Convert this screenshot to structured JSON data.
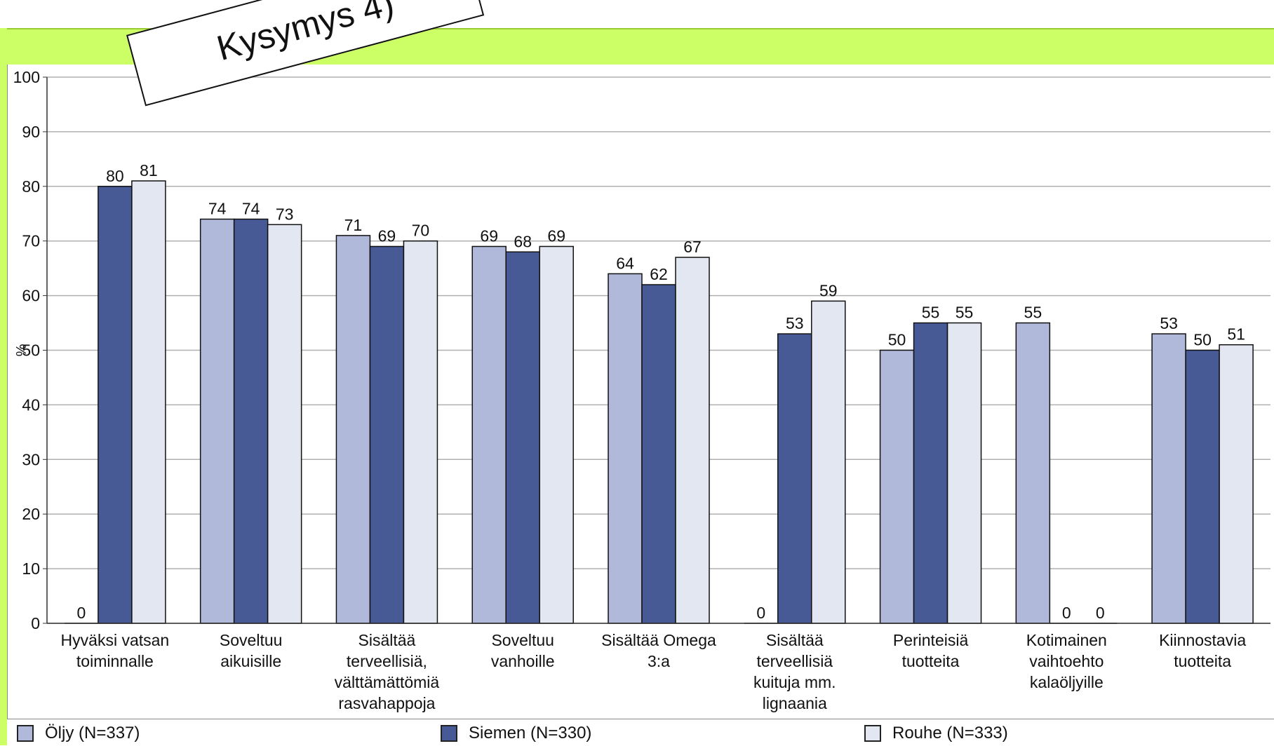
{
  "chart_data": {
    "type": "bar",
    "title": "",
    "ylabel": "%",
    "ylim": [
      0,
      100
    ],
    "yticks": [
      0,
      10,
      20,
      30,
      40,
      50,
      60,
      70,
      80,
      90,
      100
    ],
    "grid": true,
    "legend_position": "bottom",
    "categories": [
      "Hyväksi vatsan toiminnalle",
      "Soveltuu aikuisille",
      "Sisältää terveellisiä, välttämättömiä rasvahappoja",
      "Soveltuu vanhoille",
      "Sisältää Omega 3:a",
      "Sisältää terveellisiä kuituja mm. lignaania",
      "Perinteisiä tuotteita",
      "Kotimainen vaihtoehto kalaöljyille",
      "Kiinnostavia tuotteita"
    ],
    "category_lines": [
      [
        "Hyväksi vatsan",
        "toiminnalle"
      ],
      [
        "Soveltuu",
        "aikuisille"
      ],
      [
        "Sisältää",
        "terveellisiä,",
        "välttämättömiä",
        "rasvahappoja"
      ],
      [
        "Soveltuu",
        "vanhoille"
      ],
      [
        "Sisältää Omega",
        "3:a"
      ],
      [
        "Sisältää",
        "terveellisiä",
        "kuituja mm.",
        "lignaania"
      ],
      [
        "Perinteisiä",
        "tuotteita"
      ],
      [
        "Kotimainen",
        "vaihtoehto",
        "kalaöljyille"
      ],
      [
        "Kiinnostavia",
        "tuotteita"
      ]
    ],
    "series": [
      {
        "name": "Öljy (N=337)",
        "color": "#b0b9d9",
        "values": [
          0,
          74,
          71,
          69,
          64,
          0,
          50,
          55,
          53
        ]
      },
      {
        "name": "Siemen (N=330)",
        "color": "#475a96",
        "values": [
          80,
          74,
          69,
          68,
          62,
          53,
          55,
          0,
          50
        ]
      },
      {
        "name": "Rouhe (N=333)",
        "color": "#e3e7f1",
        "values": [
          81,
          73,
          70,
          69,
          67,
          59,
          55,
          0,
          51
        ]
      }
    ]
  },
  "callout": {
    "text": "Kysymys 4)"
  },
  "legend": {
    "items": [
      {
        "label": "Öljy (N=337)",
        "color": "#b0b9d9"
      },
      {
        "label": "Siemen (N=330)",
        "color": "#475a96"
      },
      {
        "label": "Rouhe (N=333)",
        "color": "#e3e7f1"
      }
    ]
  }
}
